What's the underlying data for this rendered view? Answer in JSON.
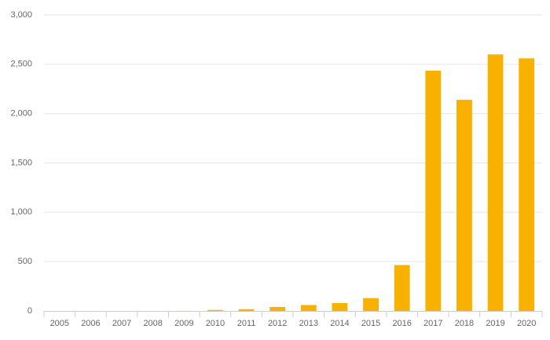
{
  "chart_data": {
    "type": "bar",
    "title": "",
    "xlabel": "",
    "ylabel": "",
    "categories": [
      "2005",
      "2006",
      "2007",
      "2008",
      "2009",
      "2010",
      "2011",
      "2012",
      "2013",
      "2014",
      "2015",
      "2016",
      "2017",
      "2018",
      "2019",
      "2020"
    ],
    "series": [
      {
        "values": [
          0,
          0,
          0,
          0,
          1,
          10,
          17,
          40,
          60,
          80,
          130,
          465,
          2435,
          2140,
          2600,
          2560
        ],
        "color": "#f9b100"
      }
    ],
    "ylim": [
      0,
      3000
    ],
    "yticks": [
      0,
      500,
      1000,
      1500,
      2000,
      2500,
      3000
    ],
    "ytick_labels": [
      "0",
      "500",
      "1,000",
      "1,500",
      "2,000",
      "2,500",
      "3,000"
    ],
    "grid": true,
    "legend": "none"
  }
}
